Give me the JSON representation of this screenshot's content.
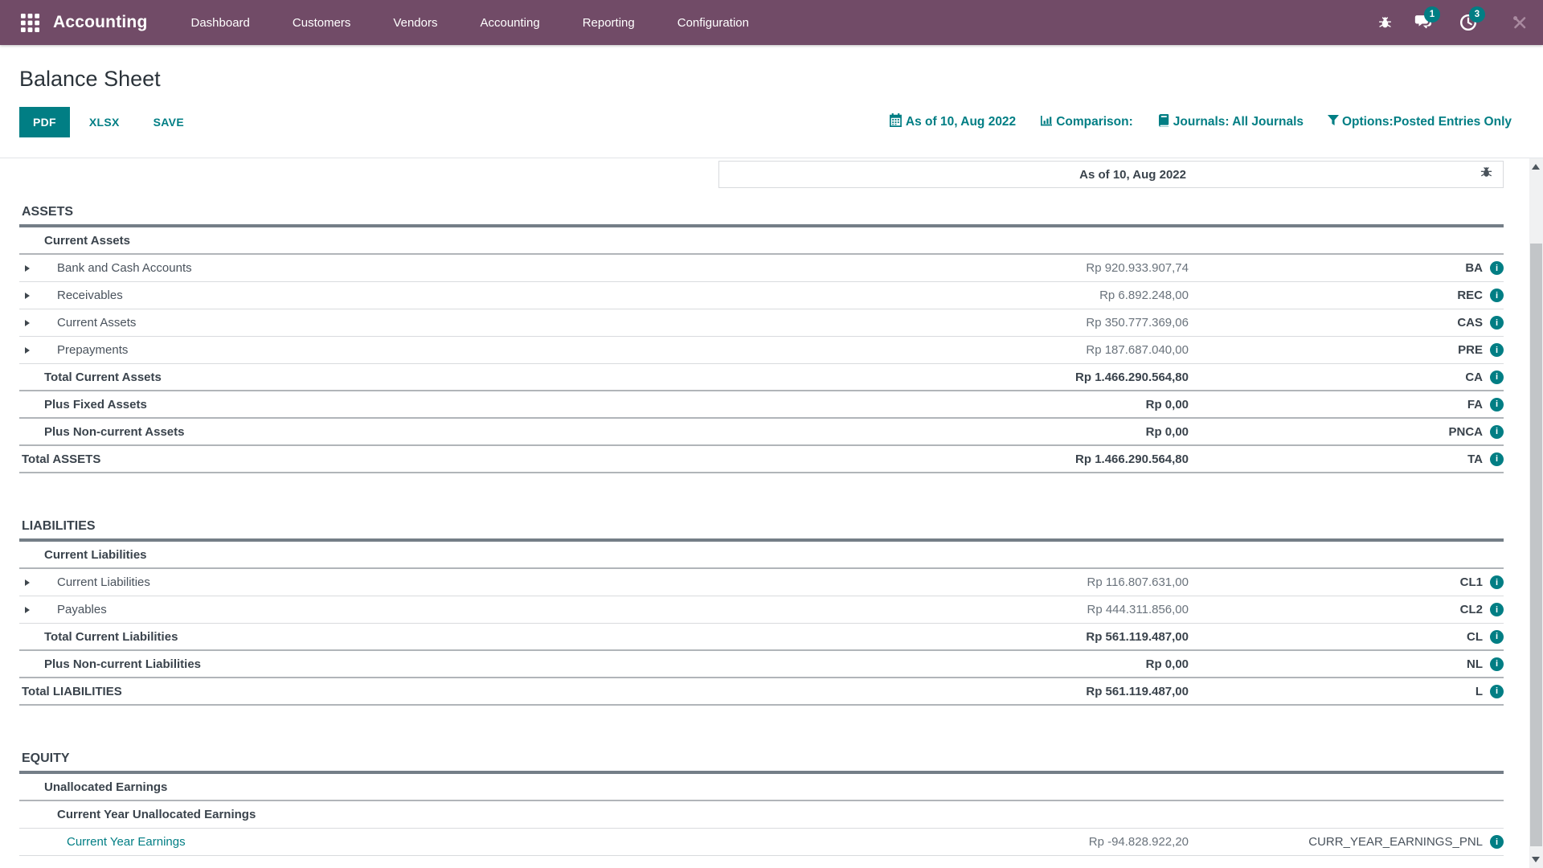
{
  "navbar": {
    "app_name": "Accounting",
    "menu": [
      "Dashboard",
      "Customers",
      "Vendors",
      "Accounting",
      "Reporting",
      "Configuration"
    ],
    "message_badge": "1",
    "activity_badge": "3"
  },
  "page": {
    "title": "Balance Sheet"
  },
  "toolbar": {
    "buttons": [
      "PDF",
      "XLSX",
      "SAVE"
    ],
    "filters": [
      {
        "icon": "calendar-icon",
        "label": "As of 10, Aug 2022"
      },
      {
        "icon": "bar-chart-icon",
        "label": "Comparison:"
      },
      {
        "icon": "book-icon",
        "label": "Journals: All Journals"
      },
      {
        "icon": "funnel-icon",
        "label": "Options:Posted Entries Only"
      }
    ]
  },
  "report": {
    "column_header": "As of 10, Aug 2022",
    "sections": [
      {
        "title": "ASSETS",
        "rows": [
          {
            "label": "Current Assets",
            "level": 1,
            "bold": true,
            "border": "medium"
          },
          {
            "label": "Bank and Cash Accounts",
            "level": 2,
            "caret": true,
            "amount": "Rp 920.933.907,74",
            "code": "BA",
            "border": "light"
          },
          {
            "label": "Receivables",
            "level": 2,
            "caret": true,
            "amount": "Rp 6.892.248,00",
            "code": "REC",
            "border": "light"
          },
          {
            "label": "Current Assets",
            "level": 2,
            "caret": true,
            "amount": "Rp 350.777.369,06",
            "code": "CAS",
            "border": "light"
          },
          {
            "label": "Prepayments",
            "level": 2,
            "caret": true,
            "amount": "Rp 187.687.040,00",
            "code": "PRE",
            "border": "light"
          },
          {
            "label": "Total Current Assets",
            "level": 1,
            "bold": true,
            "amount": "Rp 1.466.290.564,80",
            "code": "CA",
            "border": "medium"
          },
          {
            "label": "Plus Fixed Assets",
            "level": 1,
            "bold": true,
            "amount": "Rp 0,00",
            "code": "FA",
            "border": "medium"
          },
          {
            "label": "Plus Non-current Assets",
            "level": 1,
            "bold": true,
            "amount": "Rp 0,00",
            "code": "PNCA",
            "border": "medium"
          },
          {
            "label": "Total ASSETS",
            "level": 0,
            "bold": true,
            "amount": "Rp 1.466.290.564,80",
            "code": "TA",
            "border": "medium"
          }
        ]
      },
      {
        "title": "LIABILITIES",
        "rows": [
          {
            "label": "Current Liabilities",
            "level": 1,
            "bold": true,
            "border": "medium"
          },
          {
            "label": "Current Liabilities",
            "level": 2,
            "caret": true,
            "amount": "Rp 116.807.631,00",
            "code": "CL1",
            "border": "light"
          },
          {
            "label": "Payables",
            "level": 2,
            "caret": true,
            "amount": "Rp 444.311.856,00",
            "code": "CL2",
            "border": "light"
          },
          {
            "label": "Total Current Liabilities",
            "level": 1,
            "bold": true,
            "amount": "Rp 561.119.487,00",
            "code": "CL",
            "border": "medium"
          },
          {
            "label": "Plus Non-current Liabilities",
            "level": 1,
            "bold": true,
            "amount": "Rp 0,00",
            "code": "NL",
            "border": "medium"
          },
          {
            "label": "Total LIABILITIES",
            "level": 0,
            "bold": true,
            "amount": "Rp 561.119.487,00",
            "code": "L",
            "border": "medium"
          }
        ]
      },
      {
        "title": "EQUITY",
        "rows": [
          {
            "label": "Unallocated Earnings",
            "level": 1,
            "bold": true,
            "border": "medium"
          },
          {
            "label": "Current Year Unallocated Earnings",
            "level": 2,
            "bold": true,
            "border": "light"
          },
          {
            "label": "Current Year Earnings",
            "level": 3,
            "link": true,
            "amount": "Rp -94.828.922,20",
            "code": "CURR_YEAR_EARNINGS_PNL",
            "code_regular": true,
            "border": "light"
          }
        ]
      }
    ]
  },
  "colors": {
    "navbar": "#714B67",
    "accent": "#017E84"
  }
}
